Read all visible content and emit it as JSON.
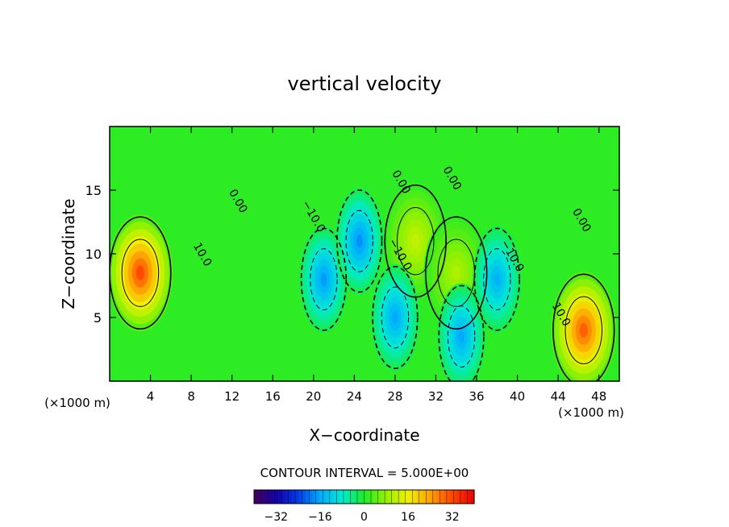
{
  "chart_data": {
    "type": "heatmap",
    "title": "vertical velocity",
    "xlabel": "X−coordinate",
    "ylabel": "Z−coordinate",
    "x_unit_left": "(×1000 m)",
    "x_unit_right": "(×1000 m)",
    "xlim": [
      0,
      50
    ],
    "ylim": [
      0,
      20
    ],
    "x_ticks": [
      4,
      8,
      12,
      16,
      20,
      24,
      28,
      32,
      36,
      40,
      44,
      48
    ],
    "y_ticks": [
      5,
      10,
      15
    ],
    "contour_interval_text": "CONTOUR INTERVAL = 5.000E+00",
    "contour_labels": [
      {
        "text": "10.0",
        "x": 8.8,
        "y": 9.8
      },
      {
        "text": "0.00",
        "x": 12.3,
        "y": 14.0
      },
      {
        "text": "−10.0",
        "x": 19.7,
        "y": 12.8
      },
      {
        "text": "0.00",
        "x": 28.3,
        "y": 15.5
      },
      {
        "text": "−10.0",
        "x": 28.2,
        "y": 9.8
      },
      {
        "text": "0.00",
        "x": 33.3,
        "y": 15.8
      },
      {
        "text": "−10.0",
        "x": 39.2,
        "y": 9.7
      },
      {
        "text": "10.0",
        "x": 44.0,
        "y": 5.1
      },
      {
        "text": "0.00",
        "x": 46.0,
        "y": 12.5
      }
    ],
    "colorbar": {
      "range": [
        -40,
        40
      ],
      "ticks": [
        -32,
        -16,
        0,
        16,
        32
      ]
    },
    "features": [
      {
        "kind": "updraft",
        "x": 3.0,
        "z": 8.5,
        "peak": 32
      },
      {
        "kind": "updraft",
        "x": 46.5,
        "z": 4.0,
        "peak": 30
      },
      {
        "kind": "updraft",
        "x": 30.0,
        "z": 11.0,
        "peak": 12
      },
      {
        "kind": "updraft",
        "x": 34.0,
        "z": 8.5,
        "peak": 10
      },
      {
        "kind": "downdraft",
        "x": 21.0,
        "z": 8.0,
        "peak": -17
      },
      {
        "kind": "downdraft",
        "x": 24.5,
        "z": 11.0,
        "peak": -18
      },
      {
        "kind": "downdraft",
        "x": 28.0,
        "z": 5.0,
        "peak": -16
      },
      {
        "kind": "downdraft",
        "x": 34.5,
        "z": 3.5,
        "peak": -16
      },
      {
        "kind": "downdraft",
        "x": 38.0,
        "z": 8.0,
        "peak": -15
      }
    ]
  }
}
